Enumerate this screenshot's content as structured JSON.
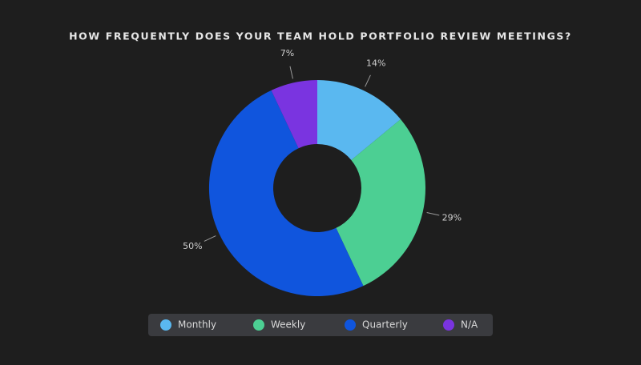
{
  "chart_data": {
    "type": "donut",
    "title": "HOW FREQUENTLY DOES YOUR TEAM HOLD PORTFOLIO REVIEW MEETINGS?",
    "categories": [
      "Monthly",
      "Weekly",
      "Quarterly",
      "N/A"
    ],
    "values": [
      14,
      29,
      50,
      7
    ],
    "value_labels": [
      "14%",
      "29%",
      "50%",
      "7%"
    ],
    "colors": [
      "#5ab8f0",
      "#4ccf93",
      "#1055dd",
      "#7a34e0"
    ],
    "legend": "bottom"
  }
}
